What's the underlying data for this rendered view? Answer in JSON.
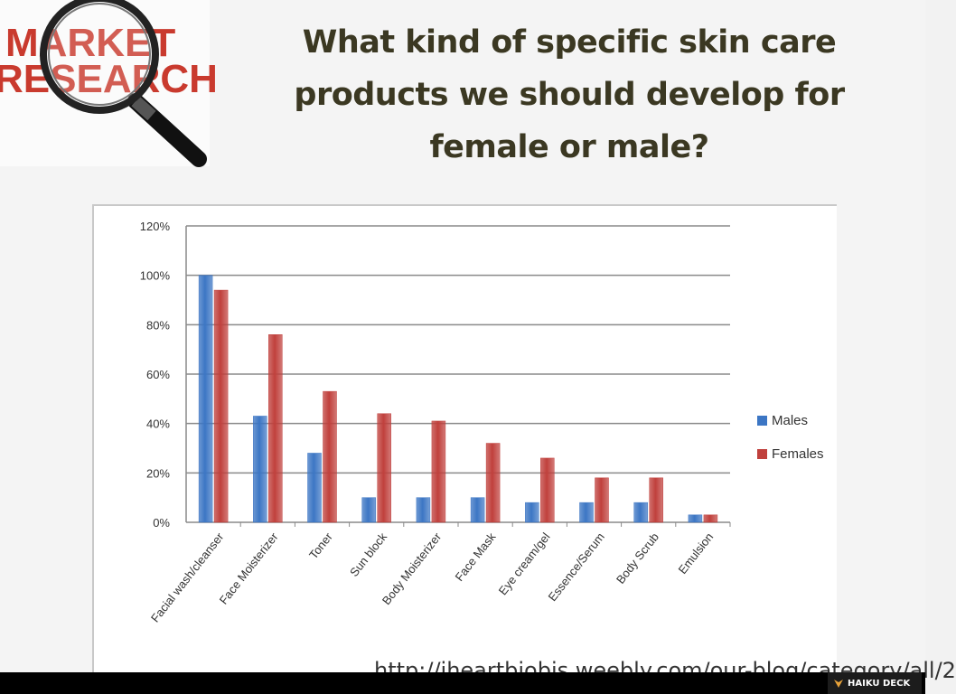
{
  "logo": {
    "line1": "MARKET",
    "line2": "RESEARCH"
  },
  "title": "What kind of specific skin care products we should develop for female or male?",
  "source_url": "http://iheartbiobis.weebly.com/our-blog/category/all/2",
  "brand": {
    "name": "HAIKU DECK"
  },
  "colors": {
    "males": "#3c76c4",
    "females": "#c0403c",
    "title": "#3b3822"
  },
  "chart_data": {
    "type": "bar",
    "title": "",
    "xlabel": "",
    "ylabel": "",
    "ylim": [
      0,
      120
    ],
    "yticks": [
      "0%",
      "20%",
      "40%",
      "60%",
      "80%",
      "100%",
      "120%"
    ],
    "grid": true,
    "legend_position": "right",
    "categories": [
      "Facial wash/cleanser",
      "Face Moisterizer",
      "Toner",
      "Sun block",
      "Body Moisterizer",
      "Face Mask",
      "Eye cream/gel",
      "Essence/Serum",
      "Body Scrub",
      "Emulsion"
    ],
    "series": [
      {
        "name": "Males",
        "values": [
          100,
          43,
          28,
          10,
          10,
          10,
          8,
          8,
          8,
          3
        ]
      },
      {
        "name": "Females",
        "values": [
          94,
          76,
          53,
          44,
          41,
          32,
          26,
          18,
          18,
          3
        ]
      }
    ]
  }
}
